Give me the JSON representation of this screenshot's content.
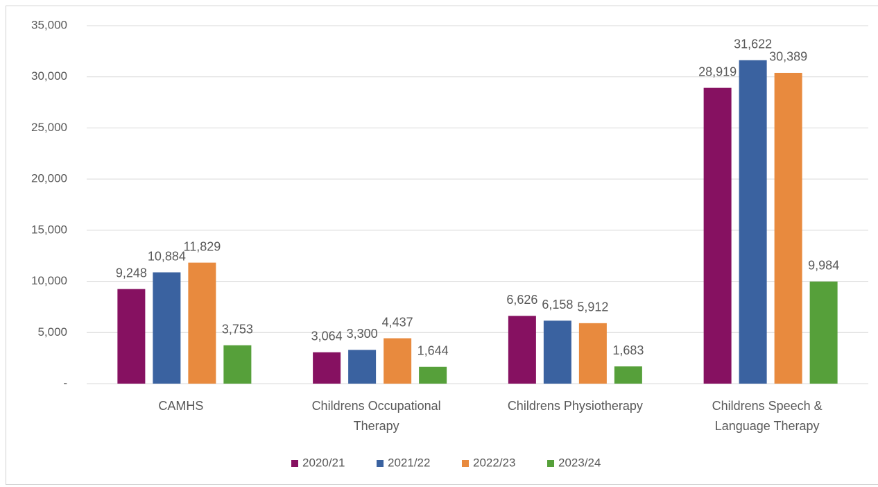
{
  "chart_data": {
    "type": "bar",
    "categories": [
      "CAMHS",
      "Childrens Occupational Therapy",
      "Childrens Physiotherapy",
      "Childrens Speech & Language Therapy"
    ],
    "series": [
      {
        "name": "2020/21",
        "color": "#861161",
        "values": [
          9248,
          3064,
          6626,
          28919
        ],
        "value_labels": [
          "9,248",
          "3,064",
          "6,626",
          "28,919"
        ]
      },
      {
        "name": "2021/22",
        "color": "#3a62a0",
        "values": [
          10884,
          3300,
          6158,
          31622
        ],
        "value_labels": [
          "10,884",
          "3,300",
          "6,158",
          "31,622"
        ]
      },
      {
        "name": "2022/23",
        "color": "#e88a3e",
        "values": [
          11829,
          4437,
          5912,
          30389
        ],
        "value_labels": [
          "11,829",
          "4,437",
          "5,912",
          "30,389"
        ]
      },
      {
        "name": "2023/24",
        "color": "#56a03a",
        "values": [
          3753,
          1644,
          1683,
          9984
        ],
        "value_labels": [
          "3,753",
          "1,644",
          "1,683",
          "9,984"
        ]
      }
    ],
    "ylim": [
      0,
      35000
    ],
    "yticks": [
      {
        "value": 0,
        "label": "-"
      },
      {
        "value": 5000,
        "label": "5,000"
      },
      {
        "value": 10000,
        "label": "10,000"
      },
      {
        "value": 15000,
        "label": "15,000"
      },
      {
        "value": 20000,
        "label": "20,000"
      },
      {
        "value": 25000,
        "label": "25,000"
      },
      {
        "value": 30000,
        "label": "30,000"
      },
      {
        "value": 35000,
        "label": "35,000"
      }
    ],
    "grid": true,
    "legend": "bottom"
  }
}
